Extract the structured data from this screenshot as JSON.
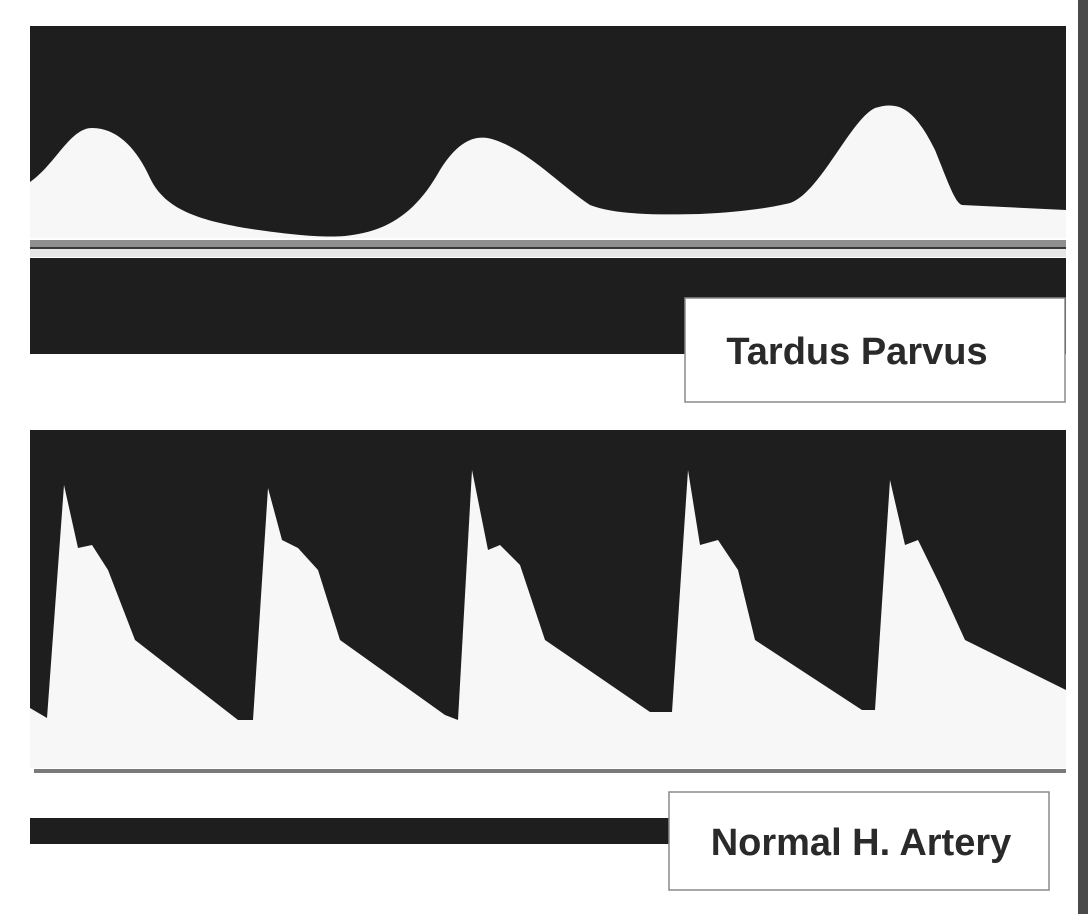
{
  "panels": [
    {
      "id": "top",
      "label": "Tardus Parvus"
    },
    {
      "id": "bottom",
      "label": "Normal H. Artery"
    }
  ],
  "colors": {
    "background": "#ffffff",
    "spectrum_fill": "#1e1e1e",
    "label_border": "#8a8a8a",
    "label_text": "#2a2a2a",
    "edge_strip": "#4a4a4a"
  }
}
